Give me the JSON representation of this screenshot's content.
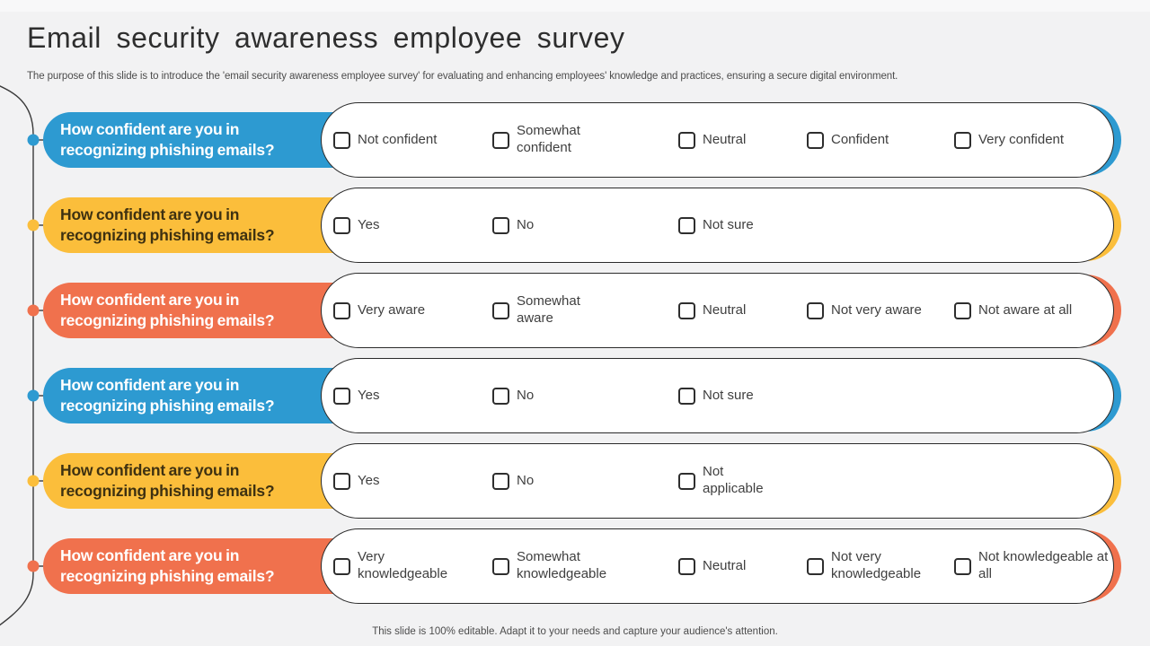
{
  "slide": {
    "title": "Email security awareness employee survey",
    "subtitle": "The purpose of this slide is to introduce the 'email security awareness employee survey' for evaluating and enhancing employees' knowledge and practices, ensuring a secure digital environment.",
    "footer": "This slide is 100% editable. Adapt it to your needs and capture your audience's attention."
  },
  "colors": {
    "background": "#F2F2F3",
    "panel_border": "#2B2B2B",
    "timeline_line": "#3A3A3A",
    "blue": "#2D9AD1",
    "yellow": "#FBBE3B",
    "orange": "#F0714D"
  },
  "icons": {
    "checkbox": "empty-rounded-square"
  },
  "rows": [
    {
      "accent": "#2D9AD1",
      "label_color": "#FFFFFF",
      "question": "How confident are you in recognizing phishing emails?",
      "options": [
        "Not confident",
        "Somewhat confident",
        "Neutral",
        "Confident",
        "Very confident"
      ]
    },
    {
      "accent": "#FBBE3B",
      "label_color": "#3E3111",
      "question": "How confident are you in recognizing phishing emails?",
      "options": [
        "Yes",
        "No",
        "Not sure"
      ]
    },
    {
      "accent": "#F0714D",
      "label_color": "#FFFFFF",
      "question": "How confident are you in recognizing phishing emails?",
      "options": [
        "Very aware",
        "Somewhat aware",
        "Neutral",
        "Not very aware",
        "Not aware at all"
      ]
    },
    {
      "accent": "#2D9AD1",
      "label_color": "#FFFFFF",
      "question": "How confident are you in recognizing phishing emails?",
      "options": [
        "Yes",
        "No",
        "Not sure"
      ]
    },
    {
      "accent": "#FBBE3B",
      "label_color": "#3E3111",
      "question": "How confident are you in recognizing phishing emails?",
      "options": [
        "Yes",
        "No",
        "Not applicable"
      ]
    },
    {
      "accent": "#F0714D",
      "label_color": "#FFFFFF",
      "question": "How confident are you in recognizing phishing emails?",
      "options": [
        "Very knowledgeable",
        "Somewhat knowledgeable",
        "Neutral",
        "Not very knowledgeable",
        "Not knowledgeable at all"
      ]
    }
  ]
}
